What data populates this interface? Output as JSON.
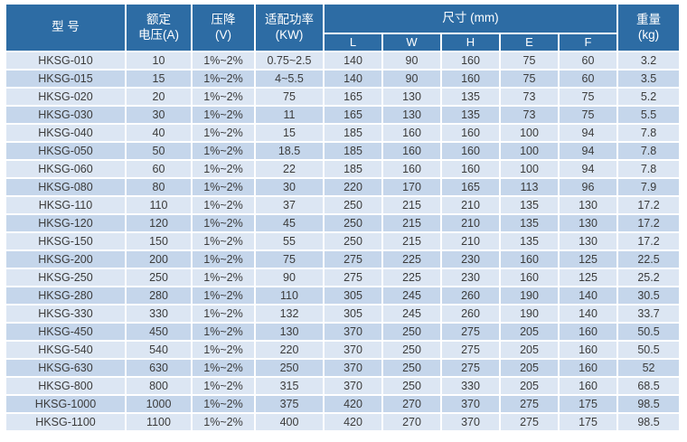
{
  "colors": {
    "header_bg": "#2d6ca4",
    "header_text": "#ffffff",
    "row_light": "#dce6f3",
    "row_dark": "#c5d6eb",
    "text": "#3b3b3b"
  },
  "table": {
    "header": {
      "model": "型 号",
      "rated_voltage": "额定\n电压(A)",
      "voltage_drop": "压降\n(V)",
      "power": "适配功率\n(KW)",
      "dimensions": "尺寸 (mm)",
      "dimension_cols": [
        "L",
        "W",
        "H",
        "E",
        "F"
      ],
      "weight": "重量\n(kg)"
    },
    "rows": [
      [
        "HKSG-010",
        "10",
        "1%~2%",
        "0.75~2.5",
        "140",
        "90",
        "160",
        "75",
        "60",
        "3.2"
      ],
      [
        "HKSG-015",
        "15",
        "1%~2%",
        "4~5.5",
        "140",
        "90",
        "160",
        "75",
        "60",
        "3.5"
      ],
      [
        "HKSG-020",
        "20",
        "1%~2%",
        "75",
        "165",
        "130",
        "135",
        "73",
        "75",
        "5.2"
      ],
      [
        "HKSG-030",
        "30",
        "1%~2%",
        "11",
        "165",
        "130",
        "135",
        "73",
        "75",
        "5.5"
      ],
      [
        "HKSG-040",
        "40",
        "1%~2%",
        "15",
        "185",
        "160",
        "160",
        "100",
        "94",
        "7.8"
      ],
      [
        "HKSG-050",
        "50",
        "1%~2%",
        "18.5",
        "185",
        "160",
        "160",
        "100",
        "94",
        "7.8"
      ],
      [
        "HKSG-060",
        "60",
        "1%~2%",
        "22",
        "185",
        "160",
        "160",
        "100",
        "94",
        "7.8"
      ],
      [
        "HKSG-080",
        "80",
        "1%~2%",
        "30",
        "220",
        "170",
        "165",
        "113",
        "96",
        "7.9"
      ],
      [
        "HKSG-110",
        "110",
        "1%~2%",
        "37",
        "250",
        "215",
        "210",
        "135",
        "130",
        "17.2"
      ],
      [
        "HKSG-120",
        "120",
        "1%~2%",
        "45",
        "250",
        "215",
        "210",
        "135",
        "130",
        "17.2"
      ],
      [
        "HKSG-150",
        "150",
        "1%~2%",
        "55",
        "250",
        "215",
        "210",
        "135",
        "130",
        "17.2"
      ],
      [
        "HKSG-200",
        "200",
        "1%~2%",
        "75",
        "275",
        "225",
        "230",
        "160",
        "125",
        "22.5"
      ],
      [
        "HKSG-250",
        "250",
        "1%~2%",
        "90",
        "275",
        "225",
        "230",
        "160",
        "125",
        "25.2"
      ],
      [
        "HKSG-280",
        "280",
        "1%~2%",
        "110",
        "305",
        "245",
        "260",
        "190",
        "140",
        "30.5"
      ],
      [
        "HKSG-330",
        "330",
        "1%~2%",
        "132",
        "305",
        "245",
        "260",
        "190",
        "140",
        "33.7"
      ],
      [
        "HKSG-450",
        "450",
        "1%~2%",
        "130",
        "370",
        "250",
        "275",
        "205",
        "160",
        "50.5"
      ],
      [
        "HKSG-540",
        "540",
        "1%~2%",
        "220",
        "370",
        "250",
        "275",
        "205",
        "160",
        "50.5"
      ],
      [
        "HKSG-630",
        "630",
        "1%~2%",
        "250",
        "370",
        "250",
        "275",
        "205",
        "160",
        "52"
      ],
      [
        "HKSG-800",
        "800",
        "1%~2%",
        "315",
        "370",
        "250",
        "330",
        "205",
        "160",
        "68.5"
      ],
      [
        "HKSG-1000",
        "1000",
        "1%~2%",
        "375",
        "420",
        "270",
        "370",
        "275",
        "175",
        "98.5"
      ],
      [
        "HKSG-1100",
        "1100",
        "1%~2%",
        "400",
        "420",
        "270",
        "370",
        "275",
        "175",
        "98.5"
      ]
    ]
  }
}
